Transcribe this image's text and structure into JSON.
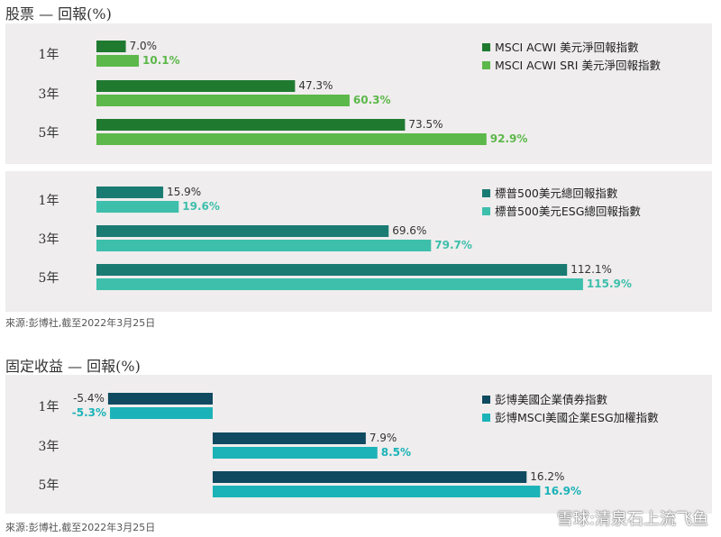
{
  "equity_title": "股票 — 回報(%)",
  "fixed_income_title": "固定收益 — 回報(%)",
  "source_1": "來源:彭博社,截至2022年3月25日",
  "source_2": "來源:彭博社,截至2022年3月25日",
  "watermark": "雪球:清泉石上流飞鱼",
  "chart_data": [
    {
      "type": "bar",
      "orientation": "horizontal",
      "title": "股票 — 回報(%)",
      "categories": [
        "1年",
        "3年",
        "5年"
      ],
      "xlim": [
        0,
        120
      ],
      "series": [
        {
          "name": "MSCI ACWI 美元淨回報指數",
          "color": "#1f7a30",
          "values": [
            7.0,
            47.3,
            73.5
          ],
          "labels": [
            "7.0%",
            "47.3%",
            "73.5%"
          ]
        },
        {
          "name": "MSCI ACWI SRI 美元淨回報指數",
          "color": "#5cb84a",
          "values": [
            10.1,
            60.3,
            92.9
          ],
          "labels": [
            "10.1%",
            "60.3%",
            "92.9%"
          ]
        }
      ]
    },
    {
      "type": "bar",
      "orientation": "horizontal",
      "categories": [
        "1年",
        "3年",
        "5年"
      ],
      "xlim": [
        0,
        120
      ],
      "series": [
        {
          "name": "標普500美元總回報指數",
          "color": "#1a7b73",
          "values": [
            15.9,
            69.6,
            112.1
          ],
          "labels": [
            "15.9%",
            "69.6%",
            "112.1%"
          ]
        },
        {
          "name": "標普500美元ESG總回報指數",
          "color": "#3dbfac",
          "values": [
            19.6,
            79.7,
            115.9
          ],
          "labels": [
            "19.6%",
            "79.7%",
            "115.9%"
          ]
        }
      ]
    },
    {
      "type": "bar",
      "orientation": "horizontal",
      "title": "固定收益 — 回報(%)",
      "categories": [
        "1年",
        "3年",
        "5年"
      ],
      "xlim": [
        -6,
        20
      ],
      "series": [
        {
          "name": "彭博美國企業債券指數",
          "color": "#0f4a60",
          "values": [
            -5.4,
            7.9,
            16.2
          ],
          "labels": [
            "-5.4%",
            "7.9%",
            "16.2%"
          ]
        },
        {
          "name": "彭博MSCI美國企業ESG加權指數",
          "color": "#1bb3b8",
          "values": [
            -5.3,
            8.5,
            16.9
          ],
          "labels": [
            "-5.3%",
            "8.5%",
            "16.9%"
          ]
        }
      ]
    }
  ]
}
